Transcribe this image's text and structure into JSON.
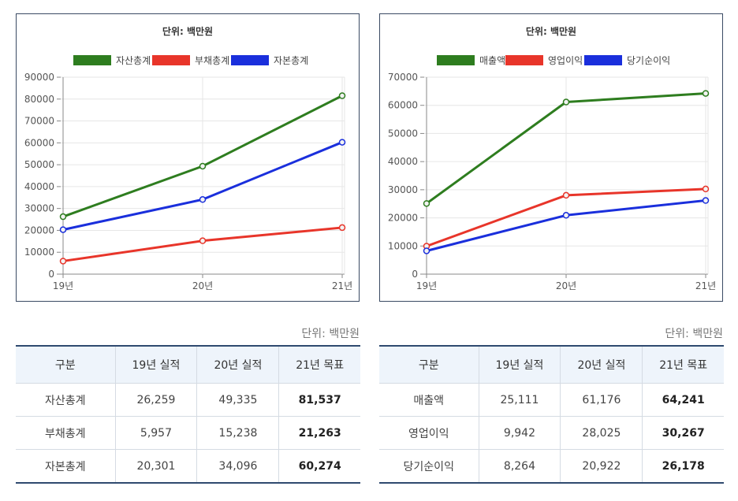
{
  "chart_data": [
    {
      "type": "line",
      "title": "단위: 백만원",
      "categories": [
        "19년",
        "20년",
        "21년"
      ],
      "ylim": [
        0,
        90000
      ],
      "yticks": [
        0,
        10000,
        20000,
        30000,
        40000,
        50000,
        60000,
        70000,
        80000,
        90000
      ],
      "grid": true,
      "legend_position": "top",
      "series": [
        {
          "name": "자산총계",
          "color": "#2e7d1f",
          "values": [
            26259,
            49335,
            81537
          ]
        },
        {
          "name": "부채총계",
          "color": "#e8352a",
          "values": [
            5957,
            15238,
            21263
          ]
        },
        {
          "name": "자본총계",
          "color": "#1a2fdc",
          "values": [
            20301,
            34096,
            60274
          ]
        }
      ]
    },
    {
      "type": "line",
      "title": "단위: 백만원",
      "categories": [
        "19년",
        "20년",
        "21년"
      ],
      "ylim": [
        0,
        70000
      ],
      "yticks": [
        0,
        10000,
        20000,
        30000,
        40000,
        50000,
        60000,
        70000
      ],
      "grid": true,
      "legend_position": "top",
      "series": [
        {
          "name": "매출액",
          "color": "#2e7d1f",
          "values": [
            25111,
            61176,
            64241
          ]
        },
        {
          "name": "영업이익",
          "color": "#e8352a",
          "values": [
            9942,
            28025,
            30267
          ]
        },
        {
          "name": "당기순이익",
          "color": "#1a2fdc",
          "values": [
            8264,
            20922,
            26178
          ]
        }
      ]
    }
  ],
  "tables": [
    {
      "unit": "단위: 백만원",
      "headers": [
        "구분",
        "19년 실적",
        "20년 실적",
        "21년 목표"
      ],
      "rows": [
        [
          "자산총계",
          "26,259",
          "49,335",
          "81,537"
        ],
        [
          "부채총계",
          "5,957",
          "15,238",
          "21,263"
        ],
        [
          "자본총계",
          "20,301",
          "34,096",
          "60,274"
        ]
      ]
    },
    {
      "unit": "단위: 백만원",
      "headers": [
        "구분",
        "19년 실적",
        "20년 실적",
        "21년 목표"
      ],
      "rows": [
        [
          "매출액",
          "25,111",
          "61,176",
          "64,241"
        ],
        [
          "영업이익",
          "9,942",
          "28,025",
          "30,267"
        ],
        [
          "당기순이익",
          "8,264",
          "20,922",
          "26,178"
        ]
      ]
    }
  ]
}
